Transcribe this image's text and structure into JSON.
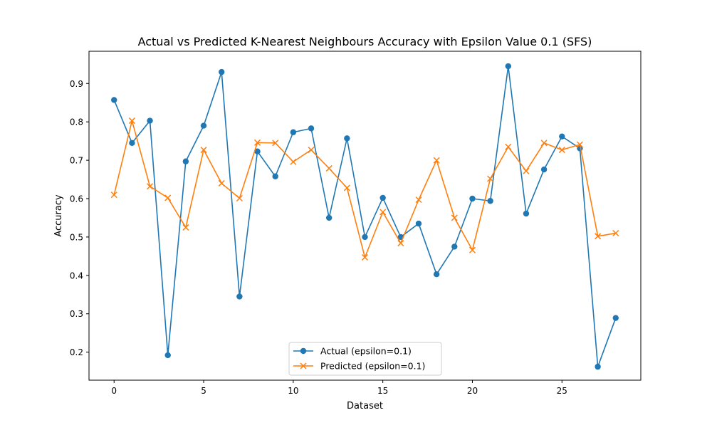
{
  "chart_data": {
    "type": "line",
    "title": "Actual vs Predicted K-Nearest Neighbours Accuracy with Epsilon Value 0.1 (SFS)",
    "xlabel": "Dataset",
    "ylabel": "Accuracy",
    "xlim": [
      -1.4,
      29.4
    ],
    "ylim": [
      0.127,
      0.984
    ],
    "xticks": [
      0,
      5,
      10,
      15,
      20,
      25
    ],
    "xtick_labels": [
      "0",
      "5",
      "10",
      "15",
      "20",
      "25"
    ],
    "yticks": [
      0.2,
      0.3,
      0.4,
      0.5,
      0.6,
      0.7,
      0.8,
      0.9
    ],
    "ytick_labels": [
      "0.2",
      "0.3",
      "0.4",
      "0.5",
      "0.6",
      "0.7",
      "0.8",
      "0.9"
    ],
    "grid": false,
    "legend_position": "lower-center",
    "x": [
      0,
      1,
      2,
      3,
      4,
      5,
      6,
      7,
      8,
      9,
      10,
      11,
      12,
      13,
      14,
      15,
      16,
      17,
      18,
      19,
      20,
      21,
      22,
      23,
      24,
      25,
      26,
      27,
      28
    ],
    "series": [
      {
        "name": "Actual (epsilon=0.1)",
        "color": "#1f77b4",
        "marker": "circle",
        "values": [
          0.857,
          0.745,
          0.803,
          0.192,
          0.697,
          0.79,
          0.93,
          0.345,
          0.723,
          0.658,
          0.773,
          0.783,
          0.55,
          0.757,
          0.5,
          0.602,
          0.5,
          0.535,
          0.403,
          0.475,
          0.6,
          0.594,
          0.945,
          0.561,
          0.676,
          0.762,
          0.731,
          0.162,
          0.289
        ]
      },
      {
        "name": "Predicted (epsilon=0.1)",
        "color": "#ff7f0e",
        "marker": "x",
        "values": [
          0.61,
          0.803,
          0.632,
          0.602,
          0.525,
          0.727,
          0.64,
          0.601,
          0.746,
          0.745,
          0.696,
          0.727,
          0.679,
          0.628,
          0.447,
          0.565,
          0.484,
          0.597,
          0.7,
          0.55,
          0.466,
          0.652,
          0.735,
          0.672,
          0.745,
          0.727,
          0.741,
          0.502,
          0.51
        ]
      }
    ]
  }
}
